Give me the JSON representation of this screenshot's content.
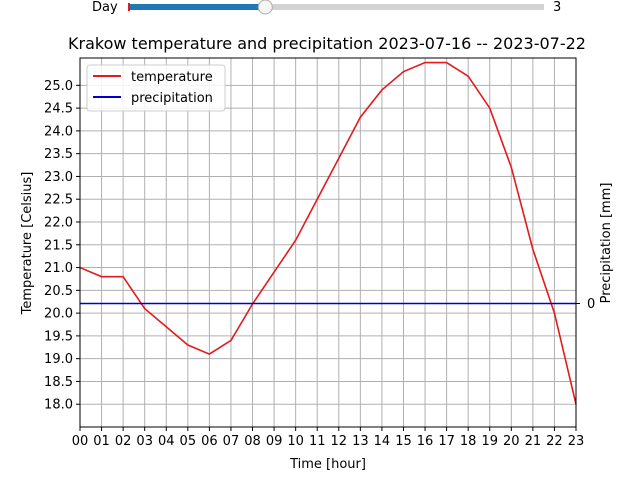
{
  "slider": {
    "label": "Day",
    "value_text": "3",
    "fraction": 0.33,
    "fill_color": "#1f77b4",
    "track_color": "#d3d3d3"
  },
  "chart_data": {
    "type": "line",
    "title": "Krakow temperature and precipitation 2023-07-16  --  2023-07-22",
    "xlabel": "Time [hour]",
    "ylabel": "Temperature [Celsius]",
    "y2label": "Precipitation [mm]",
    "grid": true,
    "legend_position": "top-left",
    "x": [
      "00",
      "01",
      "02",
      "03",
      "04",
      "05",
      "06",
      "07",
      "08",
      "09",
      "10",
      "11",
      "12",
      "13",
      "14",
      "15",
      "16",
      "17",
      "18",
      "19",
      "20",
      "21",
      "22",
      "23"
    ],
    "ylim": [
      17.5,
      25.6
    ],
    "yticks": [
      "18.0",
      "18.5",
      "19.0",
      "19.5",
      "20.0",
      "20.5",
      "21.0",
      "21.5",
      "22.0",
      "22.5",
      "23.0",
      "23.5",
      "24.0",
      "24.5",
      "25.0"
    ],
    "y2ticks": [
      "0"
    ],
    "series": [
      {
        "name": "temperature",
        "color": "#e31a1c",
        "axis": "left",
        "values": [
          21.0,
          20.8,
          20.8,
          20.1,
          19.7,
          19.3,
          19.1,
          19.4,
          20.2,
          20.9,
          21.6,
          22.5,
          23.4,
          24.3,
          24.9,
          25.3,
          25.5,
          25.5,
          25.2,
          24.5,
          23.2,
          21.4,
          20.0,
          18.0
        ]
      },
      {
        "name": "precipitation",
        "color": "#0000cc",
        "axis": "right",
        "values": [
          0,
          0,
          0,
          0,
          0,
          0,
          0,
          0,
          0,
          0,
          0,
          0,
          0,
          0,
          0,
          0,
          0,
          0,
          0,
          0,
          0,
          0,
          0,
          0
        ]
      }
    ]
  }
}
